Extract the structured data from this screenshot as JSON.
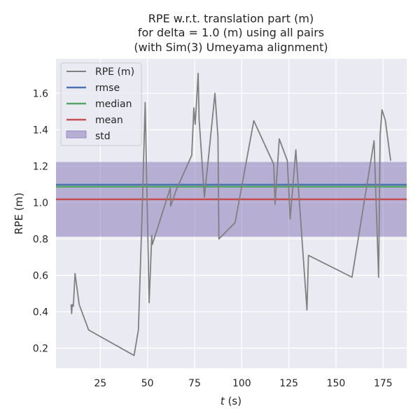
{
  "chart_data": {
    "type": "line",
    "title": [
      "RPE w.r.t. translation part (m)",
      "for delta = 1.0 (m) using all pairs",
      "(with Sim(3) Umeyama alignment)"
    ],
    "xlabel_var": "t",
    "xlabel_unit": " (s)",
    "ylabel": "RPE (m)",
    "xlim": [
      1.5,
      187.5
    ],
    "ylim": [
      0.09,
      1.79
    ],
    "xticks": [
      25,
      50,
      75,
      100,
      125,
      150,
      175
    ],
    "yticks": [
      0.2,
      0.4,
      0.6,
      0.8,
      1.0,
      1.2,
      1.4,
      1.6
    ],
    "ytick_labels": [
      "0.2",
      "0.4",
      "0.6",
      "0.8",
      "1.0",
      "1.2",
      "1.4",
      "1.6"
    ],
    "grid": true,
    "legend_placement": "upper-left",
    "series": [
      {
        "name": "RPE (m)",
        "color": "#808080",
        "points": [
          [
            9.5,
            0.44
          ],
          [
            9.8,
            0.39
          ],
          [
            10.1,
            0.44
          ],
          [
            10.7,
            0.43
          ],
          [
            11.6,
            0.61
          ],
          [
            13.8,
            0.44
          ],
          [
            18.8,
            0.3
          ],
          [
            42.9,
            0.16
          ],
          [
            45.2,
            0.3
          ],
          [
            47.4,
            1.02
          ],
          [
            48.8,
            1.55
          ],
          [
            50.9,
            0.45
          ],
          [
            52.3,
            0.82
          ],
          [
            52.6,
            0.77
          ],
          [
            62.1,
            1.08
          ],
          [
            62.3,
            0.98
          ],
          [
            65.3,
            1.07
          ],
          [
            73.5,
            1.26
          ],
          [
            74.6,
            1.52
          ],
          [
            75.3,
            1.43
          ],
          [
            76.2,
            1.58
          ],
          [
            76.9,
            1.71
          ],
          [
            77.4,
            1.46
          ],
          [
            80.2,
            1.03
          ],
          [
            82.4,
            1.25
          ],
          [
            85.8,
            1.6
          ],
          [
            87.4,
            1.36
          ],
          [
            87.9,
            0.8
          ],
          [
            96.5,
            0.89
          ],
          [
            106.4,
            1.45
          ],
          [
            117.0,
            1.21
          ],
          [
            117.7,
            0.99
          ],
          [
            119.9,
            1.35
          ],
          [
            124.2,
            1.23
          ],
          [
            125.7,
            0.91
          ],
          [
            128.7,
            1.29
          ],
          [
            130.0,
            1.09
          ],
          [
            134.6,
            0.41
          ],
          [
            135.4,
            0.71
          ],
          [
            158.5,
            0.59
          ],
          [
            170.2,
            1.34
          ],
          [
            172.6,
            0.59
          ],
          [
            173.4,
            1.37
          ],
          [
            174.4,
            1.51
          ],
          [
            176.2,
            1.45
          ],
          [
            179.0,
            1.23
          ]
        ]
      }
    ],
    "statistics": {
      "rmse": {
        "name": "rmse",
        "value": 1.098,
        "color": "#4c72b0"
      },
      "median": {
        "name": "median",
        "value": 1.087,
        "color": "#55a868"
      },
      "mean": {
        "name": "mean",
        "value": 1.018,
        "color": "#c44e52"
      },
      "std": {
        "name": "std",
        "lower": 0.813,
        "upper": 1.223,
        "color": "#8172b3"
      }
    },
    "legend": [
      "RPE (m)",
      "rmse",
      "median",
      "mean",
      "std"
    ]
  }
}
